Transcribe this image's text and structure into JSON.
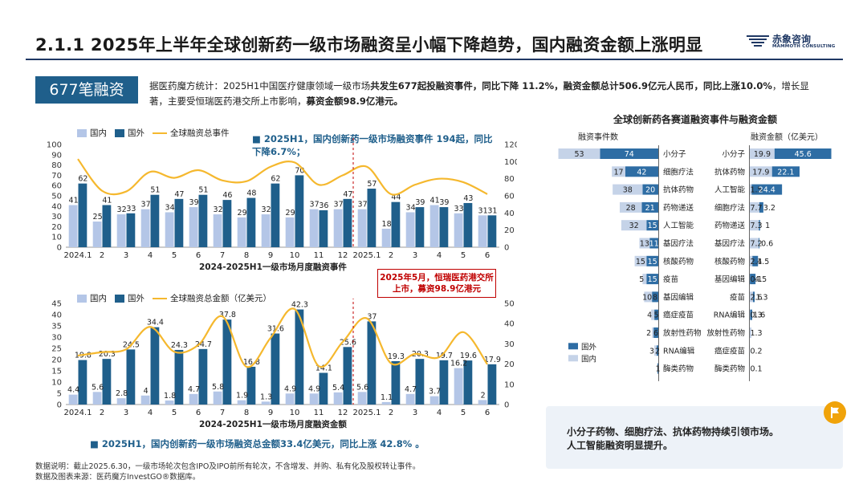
{
  "header": {
    "title": "2.1.1 2025年上半年全球创新药一级市场融资呈小幅下降趋势，国内融资金额上涨明显",
    "logo_cn": "赤象咨询",
    "logo_en": "MAMMOTH CONSULTING"
  },
  "badge": "677笔融资",
  "intro": {
    "p1": "据医药魔方统计：2025H1中国医疗健康领域一级市场",
    "p1b": "共发生677起投融资事件，同比下降 11.2%，融资金额总计506.9亿元人民币，同比上涨10.0%",
    "p2": "，增长显著，主要受恒瑞医药港交所上市影响，",
    "p2b": "募资金额98.9亿港元。"
  },
  "chart_top_legend": {
    "domestic": "国内",
    "foreign": "国外",
    "line": "全球融资总事件"
  },
  "chart_top_note": "■ 2025H1，国内创新药一级市场融资事件 194起，同比下降6.7%；",
  "chart_bottom_legend": {
    "domestic": "国内",
    "foreign": "国外",
    "line": "全球融资总金额（亿美元）"
  },
  "chart_bottom_note": "■  2025H1，国内创新药一级市场融资总金额33.4亿美元，同比上涨 42.8%  。",
  "red_callout": "2025年5月，恒瑞医药港交所上市，募资98.9亿港元",
  "right_title": "全球创新药各赛道融资事件与融资金额",
  "right_headers": {
    "left": "融资事件数",
    "right": "融资金额（亿美元）"
  },
  "right_legend": {
    "foreign": "国外",
    "domestic": "国内"
  },
  "conclusion": {
    "line1": "小分子药物、细胞疗法、抗体药物持续引领市场。",
    "line2": "人工智能融资明显提升。"
  },
  "footnote": {
    "line1": "数据说明：截止2025.6.30，一级市场轮次包含IPO及IPO前所有轮次，不含增发、并购、私有化及股权转让事件。",
    "line2": "数据及图表来源：医药魔方InvestGO®数据库。"
  },
  "colors": {
    "domestic": "#b4c6e7",
    "foreign": "#1f5f8b",
    "line": "#f5b82e",
    "accent": "#1f3864",
    "red": "#c00000"
  },
  "chart_data": [
    {
      "type": "bar",
      "title": "2024-2025H1一级市场月度融资事件",
      "categories": [
        "2024.1",
        "2",
        "3",
        "4",
        "5",
        "6",
        "7",
        "8",
        "9",
        "10",
        "11",
        "12",
        "2025.1",
        "2",
        "3",
        "4",
        "5",
        "6"
      ],
      "series": [
        {
          "name": "国内",
          "values": [
            41,
            25,
            32,
            37,
            34,
            39,
            32,
            29,
            32,
            29,
            37,
            37,
            37,
            18,
            34,
            41,
            33,
            31
          ]
        },
        {
          "name": "国外",
          "values": [
            62,
            41,
            33,
            51,
            47,
            51,
            46,
            48,
            62,
            70,
            36,
            47,
            57,
            44,
            39,
            39,
            43,
            31
          ]
        },
        {
          "name": "全球融资总事件",
          "type": "line",
          "axis": "right",
          "values": [
            103,
            66,
            65,
            88,
            81,
            90,
            78,
            77,
            94,
            99,
            73,
            84,
            94,
            62,
            73,
            80,
            76,
            62
          ]
        }
      ],
      "ylim_left": [
        0,
        100
      ],
      "ylim_right": [
        0,
        120
      ],
      "yticks_left": [
        0,
        10,
        20,
        30,
        40,
        50,
        60,
        70,
        80,
        90,
        100
      ],
      "yticks_right": [
        0,
        20,
        40,
        60,
        80,
        100,
        120
      ]
    },
    {
      "type": "bar",
      "title": "2024-2025H1一级市场月度融资金额",
      "categories": [
        "2024.1",
        "2",
        "3",
        "4",
        "5",
        "6",
        "7",
        "8",
        "9",
        "10",
        "11",
        "12",
        "2025.1",
        "2",
        "3",
        "4",
        "5",
        "6"
      ],
      "series": [
        {
          "name": "国内",
          "values": [
            4.4,
            5.6,
            2.8,
            4.0,
            1.8,
            4.7,
            5.8,
            1.9,
            1.3,
            4.9,
            4.9,
            5.4,
            5.6,
            1.1,
            4.7,
            3.7,
            16.2,
            2.0
          ]
        },
        {
          "name": "国外",
          "values": [
            19.8,
            20.3,
            24.5,
            34.4,
            24.3,
            24.7,
            37.8,
            16.8,
            31.6,
            42.3,
            14.1,
            25.6,
            37.0,
            19.3,
            20.3,
            19.7,
            19.6,
            17.9
          ]
        },
        {
          "name": "全球融资总金额（亿美元）",
          "type": "line",
          "axis": "right",
          "values": [
            24.2,
            25.9,
            27.3,
            38.4,
            26.1,
            29.4,
            43.6,
            18.7,
            32.9,
            47.2,
            19.0,
            31.0,
            42.6,
            20.4,
            25.0,
            23.4,
            35.8,
            19.9
          ]
        }
      ],
      "ylim_left": [
        0,
        45
      ],
      "ylim_right": [
        0,
        50
      ],
      "yticks_left": [
        0,
        5,
        10,
        15,
        20,
        25,
        30,
        35,
        40,
        45
      ],
      "yticks_right": [
        0,
        10,
        20,
        30,
        40,
        50
      ]
    },
    {
      "type": "bar",
      "title": "全球创新药各赛道融资事件与融资金额",
      "left": {
        "label": "融资事件数",
        "categories": [
          "小分子",
          "细胞疗法",
          "抗体药物",
          "药物递送",
          "人工智能",
          "基因疗法",
          "核酸药物",
          "疫苗",
          "基因编辑",
          "癌症疫苗",
          "放射性药物",
          "RNA编辑",
          "酶类药物"
        ],
        "foreign": [
          74,
          42,
          20,
          21,
          15,
          11,
          15,
          15,
          8,
          5,
          6,
          2,
          1
        ],
        "domestic": [
          53,
          17,
          38,
          28,
          32,
          13,
          15,
          5,
          10,
          4,
          2,
          3,
          0
        ]
      },
      "right": {
        "label": "融资金额（亿美元）",
        "categories": [
          "小分子",
          "抗体药物",
          "人工智能",
          "细胞疗法",
          "药物递送",
          "基因疗法",
          "核酸药物",
          "基因编辑",
          "疫苗",
          "RNA编辑",
          "放射性药物",
          "癌症疫苗",
          "酶类药物"
        ],
        "domestic": [
          19.9,
          17.9,
          1.5,
          7.7,
          7.3,
          7.2,
          2.1,
          0.1,
          2.6,
          0.3,
          1.3,
          0.2,
          0.1
        ],
        "foreign": [
          45.6,
          22.1,
          24.4,
          3.2,
          1.0,
          0.6,
          4.5,
          4.5,
          1.3,
          1.6,
          0,
          0,
          0
        ]
      }
    }
  ]
}
